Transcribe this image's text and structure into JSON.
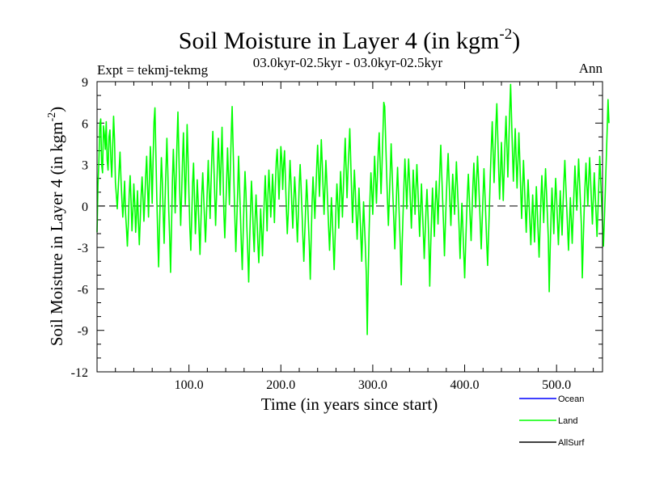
{
  "chart_data": {
    "type": "line",
    "title": "Soil Moisture in Layer 4 (in kgm",
    "title_superscript": "-2",
    "title_suffix": ")",
    "subtitle_left": "Expt = tekmj-tekmg",
    "subtitle_center": "03.0kyr-02.5kyr - 03.0kyr-02.5kyr",
    "subtitle_right": "Ann",
    "xlabel": "Time (in years since start)",
    "ylabel": "Soil Moisture in Layer 4 (in kgm",
    "ylabel_superscript": "-2",
    "ylabel_suffix": ")",
    "xlim": [
      0,
      550
    ],
    "ylim": [
      -12,
      9
    ],
    "x_ticks": [
      100,
      200,
      300,
      400,
      500
    ],
    "x_tick_labels": [
      "100.0",
      "200.0",
      "300.0",
      "400.0",
      "500.0"
    ],
    "y_ticks": [
      -12,
      -9,
      -6,
      -3,
      0,
      3,
      6,
      9
    ],
    "y_tick_labels": [
      "-12",
      "-9",
      "-6",
      "-3",
      "0",
      "3",
      "6",
      "9"
    ],
    "zero_line": "dashed",
    "legend": [
      {
        "name": "Ocean",
        "color": "#0000ff"
      },
      {
        "name": "Land",
        "color": "#00ff00"
      },
      {
        "name": "AllSurf",
        "color": "#000000"
      }
    ],
    "series": [
      {
        "name": "Land",
        "color": "#00ff00",
        "x_step": 1,
        "values": [
          -1.9,
          1.5,
          3.2,
          5.9,
          6.3,
          3.0,
          2.4,
          5.8,
          5.2,
          4.1,
          6.1,
          3.3,
          2.6,
          5.0,
          5.5,
          3.4,
          2.1,
          4.3,
          6.5,
          4.8,
          1.7,
          0.8,
          -0.2,
          1.2,
          2.6,
          3.9,
          2.0,
          0.5,
          -0.8,
          0.3,
          1.8,
          -0.5,
          -1.6,
          -2.9,
          -1.3,
          0.9,
          2.2,
          0.4,
          -1.8,
          -0.4,
          1.6,
          0.2,
          -1.9,
          -0.6,
          1.1,
          -1.2,
          -2.8,
          -1.0,
          0.8,
          2.1,
          0.6,
          -1.1,
          0.5,
          2.3,
          3.6,
          1.4,
          -0.8,
          1.9,
          4.3,
          2.6,
          0.2,
          3.4,
          6.1,
          7.1,
          3.8,
          0.7,
          -2.1,
          -4.4,
          -1.5,
          1.2,
          3.5,
          1.9,
          -0.6,
          -2.7,
          0.4,
          2.7,
          4.9,
          2.5,
          -0.3,
          -2.2,
          -4.8,
          -1.6,
          1.8,
          4.1,
          2.2,
          -0.5,
          2.0,
          4.6,
          6.8,
          3.9,
          1.0,
          -1.4,
          0.8,
          3.3,
          5.3,
          2.8,
          0.1,
          2.5,
          5.9,
          3.6,
          0.8,
          -1.6,
          -3.2,
          -0.9,
          1.7,
          3.1,
          0.6,
          -2.0,
          -0.3,
          1.9,
          0.4,
          -1.7,
          -3.5,
          -1.2,
          0.9,
          2.4,
          0.7,
          -1.0,
          -2.6,
          -0.8,
          1.3,
          3.3,
          1.1,
          -0.9,
          1.6,
          3.8,
          5.4,
          3.2,
          0.9,
          -1.4,
          0.7,
          2.9,
          4.9,
          3.0,
          0.8,
          3.3,
          5.7,
          2.6,
          -0.5,
          -2.3,
          -0.3,
          1.8,
          4.2,
          2.2,
          0.1,
          2.6,
          5.1,
          7.2,
          4.4,
          1.6,
          -0.9,
          -3.3,
          -1.2,
          1.0,
          3.6,
          1.5,
          -0.6,
          -2.8,
          -4.6,
          -2.0,
          0.4,
          2.5,
          1.0,
          -1.5,
          -3.4,
          -5.5,
          -2.6,
          -0.4,
          1.8,
          0.3,
          -1.9,
          -3.3,
          -1.0,
          0.8,
          -0.9,
          -2.7,
          -4.1,
          -2.3,
          -0.2,
          -1.8,
          -3.6,
          -1.4,
          0.5,
          2.2,
          0.3,
          -1.8,
          0.9,
          2.6,
          1.0,
          -0.8,
          0.6,
          2.3,
          0.7,
          -1.2,
          1.4,
          3.2,
          4.1,
          2.4,
          0.5,
          2.3,
          4.3,
          3.4,
          1.2,
          3.0,
          4.0,
          1.9,
          -0.2,
          -2.0,
          -0.6,
          1.5,
          3.3,
          1.8,
          -0.1,
          -1.6,
          0.3,
          2.1,
          0.9,
          -0.9,
          -2.6,
          -0.7,
          1.6,
          3.0,
          1.4,
          -0.4,
          -2.3,
          -4.0,
          -2.0,
          -0.1,
          1.9,
          0.5,
          -1.2,
          -2.9,
          -5.3,
          -2.4,
          0.3,
          2.1,
          0.6,
          -0.9,
          0.9,
          2.8,
          4.4,
          2.6,
          0.7,
          2.6,
          4.8,
          3.1,
          1.2,
          -0.6,
          1.4,
          3.3,
          1.8,
          0.1,
          -1.6,
          -3.2,
          -1.4,
          0.6,
          -0.9,
          -2.7,
          -4.6,
          -2.3,
          -0.1,
          1.6,
          0.2,
          -1.6,
          0.5,
          2.5,
          1.0,
          -0.8,
          1.2,
          3.1,
          4.9,
          2.8,
          0.6,
          2.5,
          4.0,
          5.6,
          3.3,
          1.0,
          -1.2,
          0.7,
          2.6,
          1.1,
          -0.7,
          -2.4,
          -0.6,
          1.3,
          -0.4,
          -2.2,
          -4.0,
          -1.8,
          0.3,
          -1.4,
          -3.0,
          -5.0,
          -9.3,
          -5.2,
          -1.9,
          0.6,
          2.4,
          1.1,
          -0.6,
          1.6,
          3.6,
          2.0,
          0.2,
          2.1,
          4.0,
          5.3,
          3.1,
          0.9,
          2.8,
          5.1,
          7.5,
          7.2,
          4.9,
          2.6,
          0.4,
          -1.4,
          0.5,
          2.4,
          4.5,
          2.6,
          0.6,
          -1.2,
          -3.1,
          -1.0,
          1.1,
          2.8,
          0.9,
          -1.0,
          -2.9,
          -5.7,
          -2.7,
          -0.5,
          1.6,
          3.4,
          1.7,
          -0.2,
          1.7,
          3.4,
          1.9,
          0.2,
          -1.6,
          0.4,
          2.6,
          1.2,
          -0.6,
          1.3,
          3.0,
          1.4,
          -0.4,
          -2.2,
          -0.3,
          1.6,
          -0.2,
          -1.9,
          -3.8,
          -2.0,
          -0.2,
          1.2,
          -0.5,
          -2.5,
          -5.8,
          -3.0,
          -0.8,
          1.3,
          -0.4,
          -2.2,
          0.1,
          1.8,
          0.4,
          -1.3,
          0.8,
          2.6,
          4.4,
          2.4,
          0.5,
          -1.3,
          -3.6,
          -1.4,
          0.6,
          2.3,
          3.8,
          1.9,
          0.2,
          -1.4,
          0.6,
          2.3,
          1.0,
          -0.6,
          1.3,
          3.2,
          1.6,
          0.0,
          -1.7,
          -3.8,
          -1.8,
          0.2,
          -1.5,
          -3.4,
          -5.2,
          -3.0,
          -0.9,
          0.9,
          2.3,
          0.7,
          -0.9,
          -2.5,
          -0.4,
          1.5,
          3.1,
          1.5,
          -0.1,
          1.9,
          3.6,
          2.1,
          0.4,
          -1.3,
          -3.1,
          -1.2,
          0.7,
          2.7,
          1.0,
          -0.8,
          -2.7,
          -4.3,
          -2.1,
          0.1,
          2.4,
          4.3,
          6.1,
          3.9,
          1.7,
          3.7,
          5.9,
          7.4,
          5.1,
          2.7,
          0.5,
          2.5,
          4.6,
          2.5,
          0.4,
          2.6,
          4.8,
          6.5,
          4.3,
          2.1,
          4.4,
          6.8,
          8.8,
          6.4,
          4.0,
          1.8,
          3.7,
          5.6,
          3.5,
          1.3,
          3.2,
          5.3,
          3.3,
          1.1,
          -0.9,
          1.2,
          3.3,
          1.6,
          -0.2,
          -1.9,
          0.1,
          1.9,
          0.4,
          -1.2,
          -2.8,
          -1.0,
          0.8,
          -0.9,
          -2.6,
          -0.6,
          1.4,
          -0.3,
          -2.0,
          -3.7,
          -1.6,
          0.5,
          2.2,
          0.5,
          -1.2,
          0.9,
          2.7,
          1.1,
          -0.6,
          -2.3,
          -6.2,
          -3.2,
          -0.8,
          1.3,
          -0.3,
          -2.0,
          0.2,
          2.0,
          0.6,
          -1.1,
          -2.8,
          -0.9,
          1.1,
          -0.5,
          -2.1,
          0.0,
          1.8,
          3.3,
          1.6,
          0.0,
          -1.6,
          -3.2,
          -1.3,
          0.6,
          -1.0,
          -2.7,
          -0.8,
          1.1,
          2.9,
          1.3,
          -0.3,
          1.6,
          3.4,
          1.8,
          0.2,
          -1.4,
          -5.2,
          -2.6,
          -0.4,
          1.5,
          3.1,
          1.5,
          0.0,
          1.9,
          3.5,
          1.9,
          0.3,
          -1.3,
          0.6,
          2.4,
          0.9,
          -0.6,
          -2.2,
          -0.4,
          1.6,
          3.6,
          1.9,
          0.3,
          -1.3,
          -2.9,
          -1.0,
          1.0,
          3.2,
          5.4,
          7.7,
          6.0
        ]
      }
    ]
  }
}
